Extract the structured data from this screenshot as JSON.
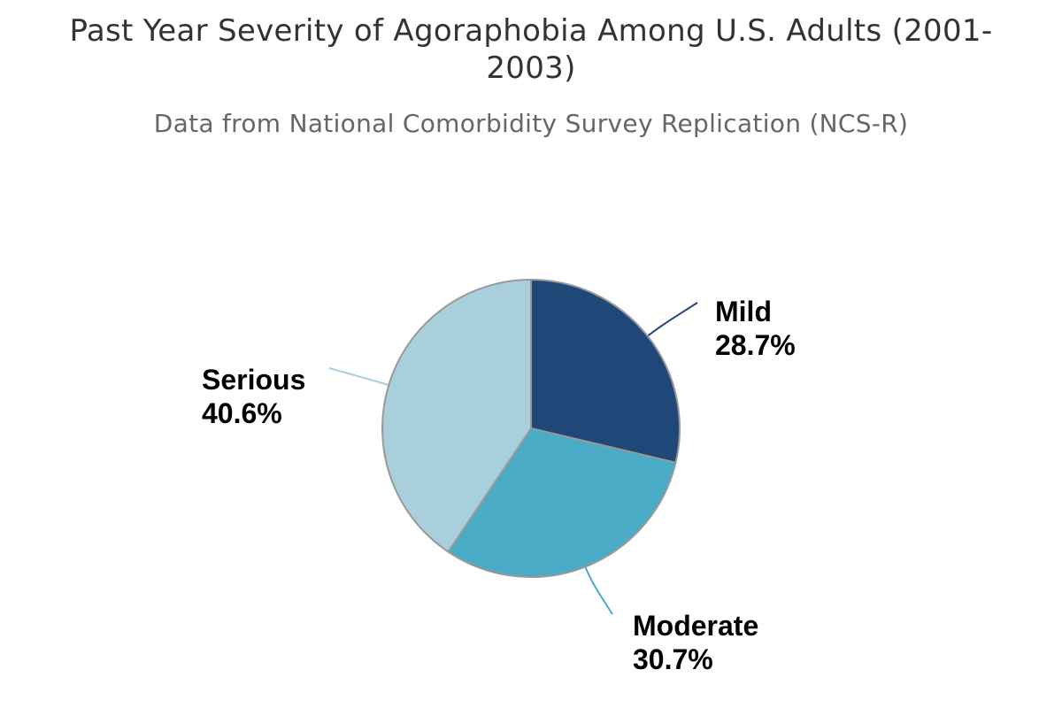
{
  "chart_data": {
    "type": "pie",
    "title": "Past Year Severity of Agoraphobia Among U.S. Adults (2001-2003)",
    "subtitle": "Data from National Comorbidity Survey Replication (NCS-R)",
    "slices": [
      {
        "name": "Mild",
        "value": 28.7,
        "value_label": "28.7%",
        "color": "#1f4878"
      },
      {
        "name": "Moderate",
        "value": 30.7,
        "value_label": "30.7%",
        "color": "#4aabc6"
      },
      {
        "name": "Serious",
        "value": 40.6,
        "value_label": "40.6%",
        "color": "#a9cfdd"
      }
    ],
    "start_angle_deg": 0,
    "direction": "clockwise",
    "slice_border_color": "#999999",
    "legend": "none"
  }
}
